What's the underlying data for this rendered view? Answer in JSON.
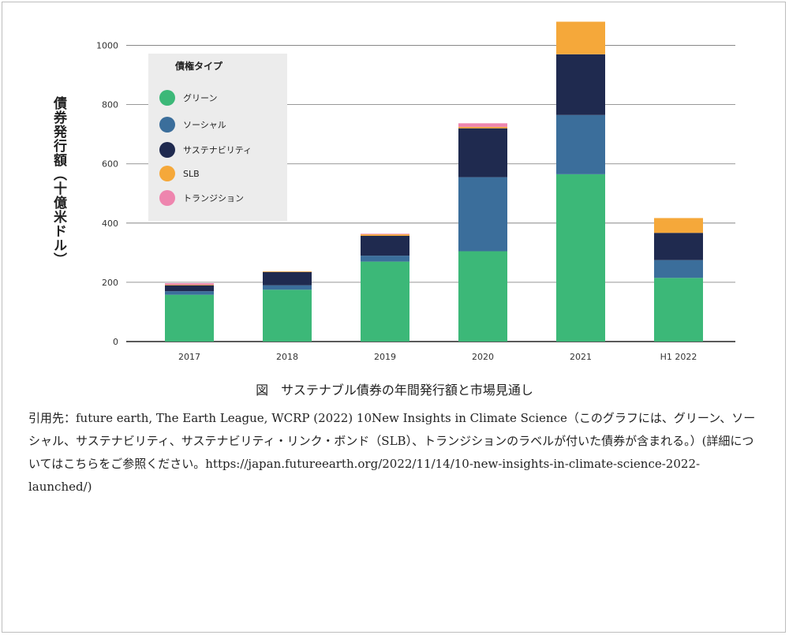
{
  "chart_data": {
    "type": "bar",
    "stacked": true,
    "categories": [
      "2017",
      "2018",
      "2019",
      "2020",
      "2021",
      "H1 2022"
    ],
    "series": [
      {
        "name": "グリーン",
        "color": "#3cb878",
        "values": [
          158,
          175,
          270,
          305,
          565,
          215
        ]
      },
      {
        "name": "ソーシャル",
        "color": "#3b6e9b",
        "values": [
          12,
          15,
          20,
          250,
          200,
          60
        ]
      },
      {
        "name": "サステナビリティ",
        "color": "#1f2a4f",
        "values": [
          20,
          45,
          67,
          165,
          205,
          92
        ]
      },
      {
        "name": "SLB",
        "color": "#f5a83a",
        "values": [
          2,
          2,
          5,
          5,
          110,
          50
        ]
      },
      {
        "name": "トランジション",
        "color": "#ee85ae",
        "values": [
          5,
          0,
          2,
          12,
          0,
          0
        ]
      }
    ],
    "ylim": [
      0,
      1100
    ],
    "yticks": [
      0,
      200,
      400,
      600,
      800,
      1000
    ],
    "ylabel": "債券発行額（十億米ドル）",
    "legend_title": "債権タイプ",
    "legend_position": "top-left",
    "grid": true
  },
  "caption": "図　サステナブル債券の年間発行額と市場見通し",
  "source_text": "引用先：future earth, The Earth League, WCRP (2022) 10New Insights in Climate Science（このグラフには、グリーン、ソーシャル、サステナビリティ、サステナビリティ・リンク・ボンド（SLB）、トランジションのラベルが付いた債券が含まれる。）(詳細についてはこちらをご参照ください。https://japan.futureearth.org/2022/11/14/10-new-insights-in-climate-science-2022-launched/)"
}
